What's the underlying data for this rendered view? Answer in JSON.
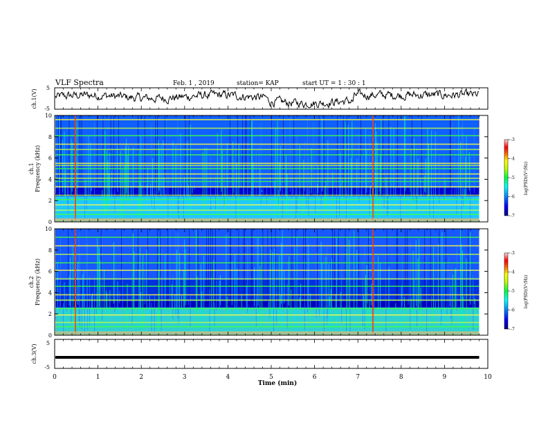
{
  "header": {
    "title": "VLF Spectra",
    "date": "Feb. 1 , 2019",
    "station": "station= KAP",
    "start": "start  UT =   1 : 30 : 1"
  },
  "chart_data": [
    {
      "type": "line",
      "panel": "ch1-waveform",
      "ylabel": "ch.1(V)",
      "ylim": [
        -5,
        5
      ],
      "yticks": [
        "5",
        "-5"
      ],
      "xlim": [
        0,
        10
      ],
      "x_end": 9.8,
      "description_values": "continuous waveform trace hovering between about -3 and 4 V"
    },
    {
      "type": "heatmap",
      "panel": "ch1-spectrogram",
      "ylabel": "ch.1\nFrequency (kHz)",
      "ylim": [
        0,
        10
      ],
      "yticks": [
        "0",
        "2",
        "4",
        "6",
        "8",
        "10"
      ],
      "xlim": [
        0,
        10
      ],
      "x_end": 9.8,
      "colorbar": {
        "label": "log(PSD)(V²/Hz)",
        "range": [
          -7,
          -3
        ],
        "ticks": [
          "-3",
          "-4",
          "-5",
          "-6",
          "-7"
        ]
      },
      "strong_lines_khz": [
        0.2,
        0.7,
        1.1,
        1.6,
        2.1,
        2.5,
        3.3,
        3.8,
        4.1,
        4.5,
        5.0,
        5.3,
        5.5,
        6.3,
        6.8,
        7.3,
        8.1,
        8.8,
        9.6
      ],
      "broadband_spikes_min": [
        0.48,
        7.35
      ]
    },
    {
      "type": "heatmap",
      "panel": "ch2-spectrogram",
      "ylabel": "ch.2\nFrequency (kHz)",
      "ylim": [
        0,
        10
      ],
      "yticks": [
        "0",
        "2",
        "4",
        "6",
        "8",
        "10"
      ],
      "xlim": [
        0,
        10
      ],
      "x_end": 9.8,
      "colorbar": {
        "label": "log(PSD)(V²/Hz)",
        "range": [
          -7,
          -3
        ],
        "ticks": [
          "-3",
          "-4",
          "-5",
          "-6",
          "-7"
        ]
      },
      "strong_lines_khz": [
        0.3,
        0.8,
        1.2,
        1.9,
        2.5,
        3.3,
        3.8,
        4.6,
        5.3,
        6.1,
        6.8,
        7.6,
        8.4,
        9.2
      ],
      "broadband_spikes_min": [
        0.48,
        7.35
      ]
    },
    {
      "type": "line",
      "panel": "ch3-waveform",
      "ylabel": "ch.3(V)",
      "ylim": [
        -5,
        5
      ],
      "yticks": [
        "5",
        "-5"
      ],
      "xlim": [
        0,
        10
      ],
      "x_end": 9.8,
      "value": -1.2,
      "description_values": "flat thick line near -1.2 V"
    }
  ],
  "xaxis": {
    "label": "Time (min)",
    "ticks": [
      "0",
      "1",
      "2",
      "3",
      "4",
      "5",
      "6",
      "7",
      "8",
      "9",
      "10"
    ]
  },
  "colors": {
    "cmap": [
      "#000080",
      "#0000ff",
      "#00a0ff",
      "#00ffff",
      "#00ff80",
      "#00ff00",
      "#c0ff00",
      "#ffff00",
      "#ff8000",
      "#ff0000",
      "#ffc0c0"
    ]
  }
}
